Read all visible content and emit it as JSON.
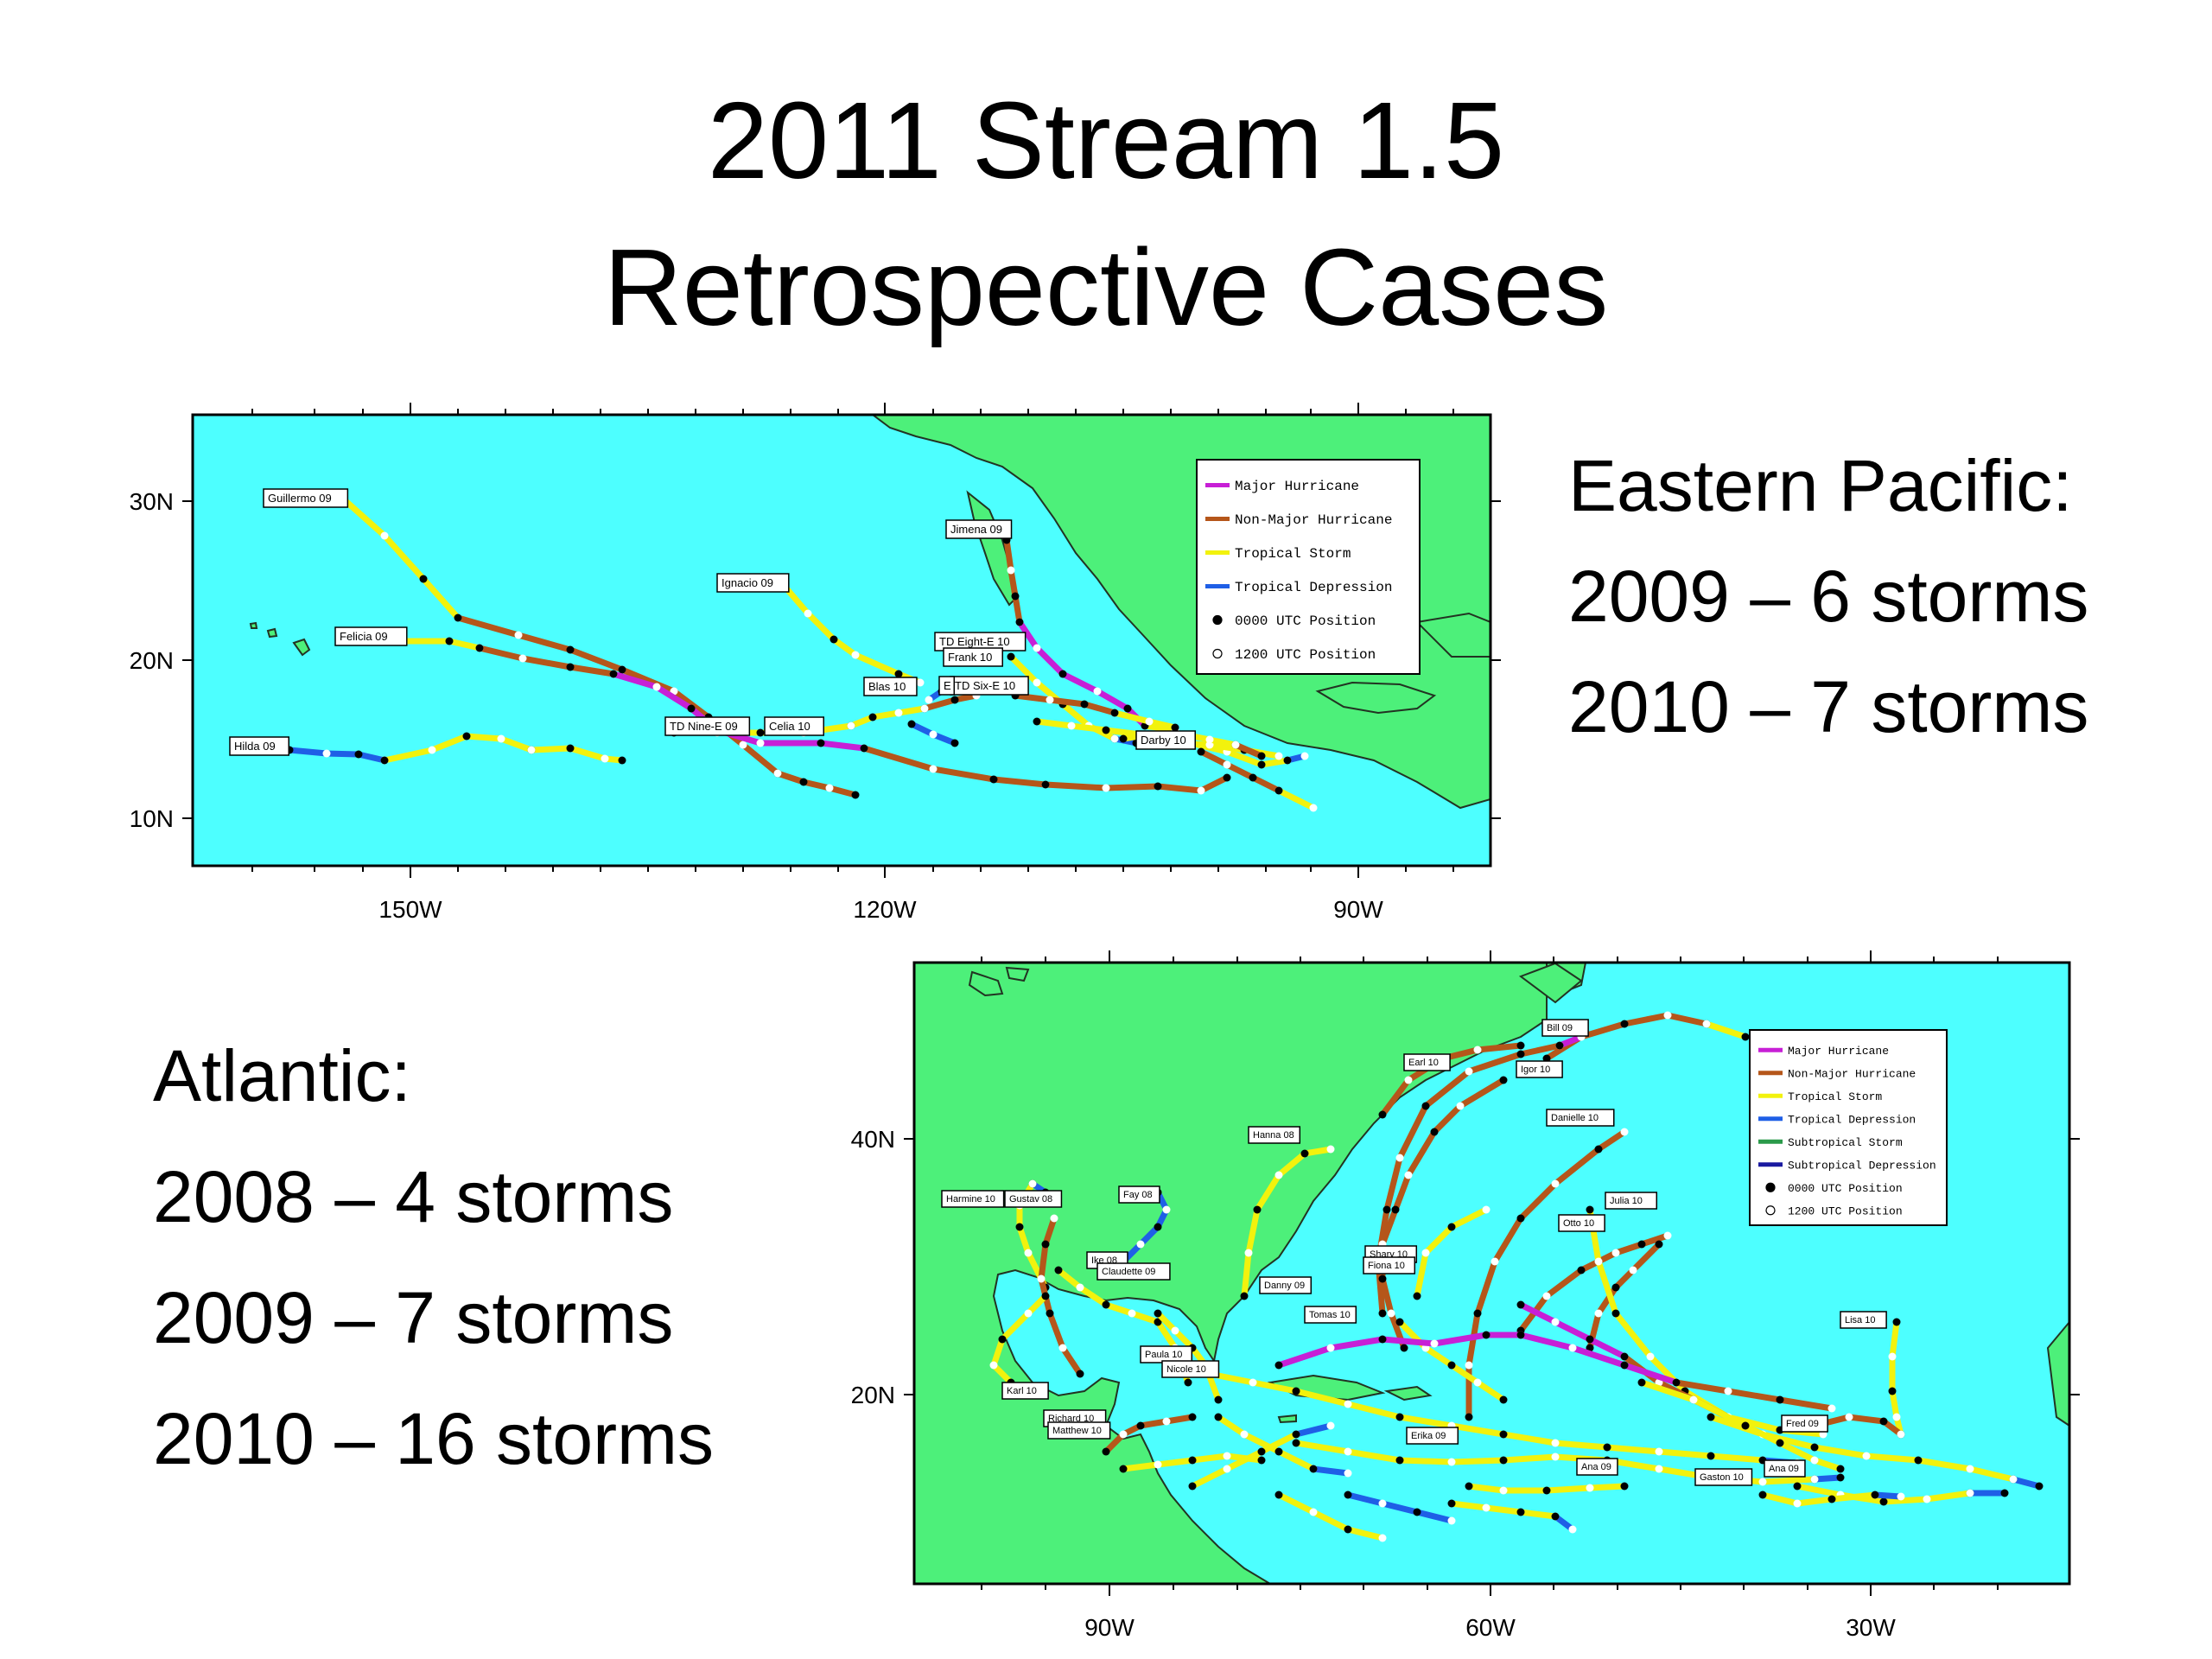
{
  "slide": {
    "title_line1": "2011 Stream 1.5",
    "title_line2": "Retrospective Cases"
  },
  "epac_text": {
    "heading": "Eastern Pacific:",
    "line1": "2009 – 6 storms",
    "line2": "2010 – 7 storms"
  },
  "atl_text": {
    "heading": "Atlantic:",
    "line1": "2008 – 4 storms",
    "line2": "2009 – 7 storms",
    "line3": "2010 – 16 storms"
  },
  "colors": {
    "ocean": "#4dffff",
    "land": "#4df07a",
    "major_hurricane": "#c71fd6",
    "non_major_hurricane": "#b5561a",
    "tropical_storm": "#f2f20d",
    "tropical_depression": "#1f5fe6",
    "subtropical_storm": "#2a9a4a",
    "subtropical_depression": "#1a1aa0"
  },
  "epac_map": {
    "y_ticks": [
      "30N",
      "20N",
      "10N"
    ],
    "x_ticks": [
      "150W",
      "120W",
      "90W"
    ],
    "legend": [
      {
        "label": "Major Hurricane",
        "kind": "line",
        "color_key": "major_hurricane"
      },
      {
        "label": "Non-Major Hurricane",
        "kind": "line",
        "color_key": "non_major_hurricane"
      },
      {
        "label": "Tropical Storm",
        "kind": "line",
        "color_key": "tropical_storm"
      },
      {
        "label": "Tropical Depression",
        "kind": "line",
        "color_key": "tropical_depression"
      },
      {
        "label": "0000 UTC Position",
        "kind": "dot-black"
      },
      {
        "label": "1200 UTC Position",
        "kind": "dot-white"
      }
    ],
    "storm_labels": [
      "Guillermo 09",
      "Jimena 09",
      "Ignacio 09",
      "Felicia 09",
      "TD Eight-E 10",
      "Frank 10",
      "Blas 10",
      "TD Six-E 10",
      "E",
      "TD Nine-E 09",
      "Celia 10",
      "Hilda 09",
      "Darby 10"
    ]
  },
  "atl_map": {
    "y_ticks": [
      "40N",
      "20N"
    ],
    "x_ticks": [
      "90W",
      "60W",
      "30W"
    ],
    "legend": [
      {
        "label": "Major Hurricane",
        "kind": "line",
        "color_key": "major_hurricane"
      },
      {
        "label": "Non-Major Hurricane",
        "kind": "line",
        "color_key": "non_major_hurricane"
      },
      {
        "label": "Tropical Storm",
        "kind": "line",
        "color_key": "tropical_storm"
      },
      {
        "label": "Tropical Depression",
        "kind": "line",
        "color_key": "tropical_depression"
      },
      {
        "label": "Subtropical Storm",
        "kind": "line",
        "color_key": "subtropical_storm"
      },
      {
        "label": "Subtropical Depression",
        "kind": "line",
        "color_key": "subtropical_depression"
      },
      {
        "label": "0000 UTC Position",
        "kind": "dot-black"
      },
      {
        "label": "1200 UTC Position",
        "kind": "dot-white"
      }
    ],
    "storm_labels": [
      "Bill 09",
      "Earl 10",
      "Igor 10",
      "Danielle 10",
      "Hanna 08",
      "Julia 10",
      "Otto 10",
      "Harmine 10",
      "Gustav 08",
      "Fay 08",
      "Ike 08",
      "Claudette 09",
      "Shary 10",
      "Fiona 10",
      "Danny 09",
      "Tomas 10",
      "Lisa 10",
      "Paula 10",
      "Nicole 10",
      "Karl 10",
      "Richard 10",
      "Matthew 10",
      "Erika 09",
      "Fred 09",
      "Ana 09",
      "Gaston 10",
      "Ana 09"
    ]
  }
}
